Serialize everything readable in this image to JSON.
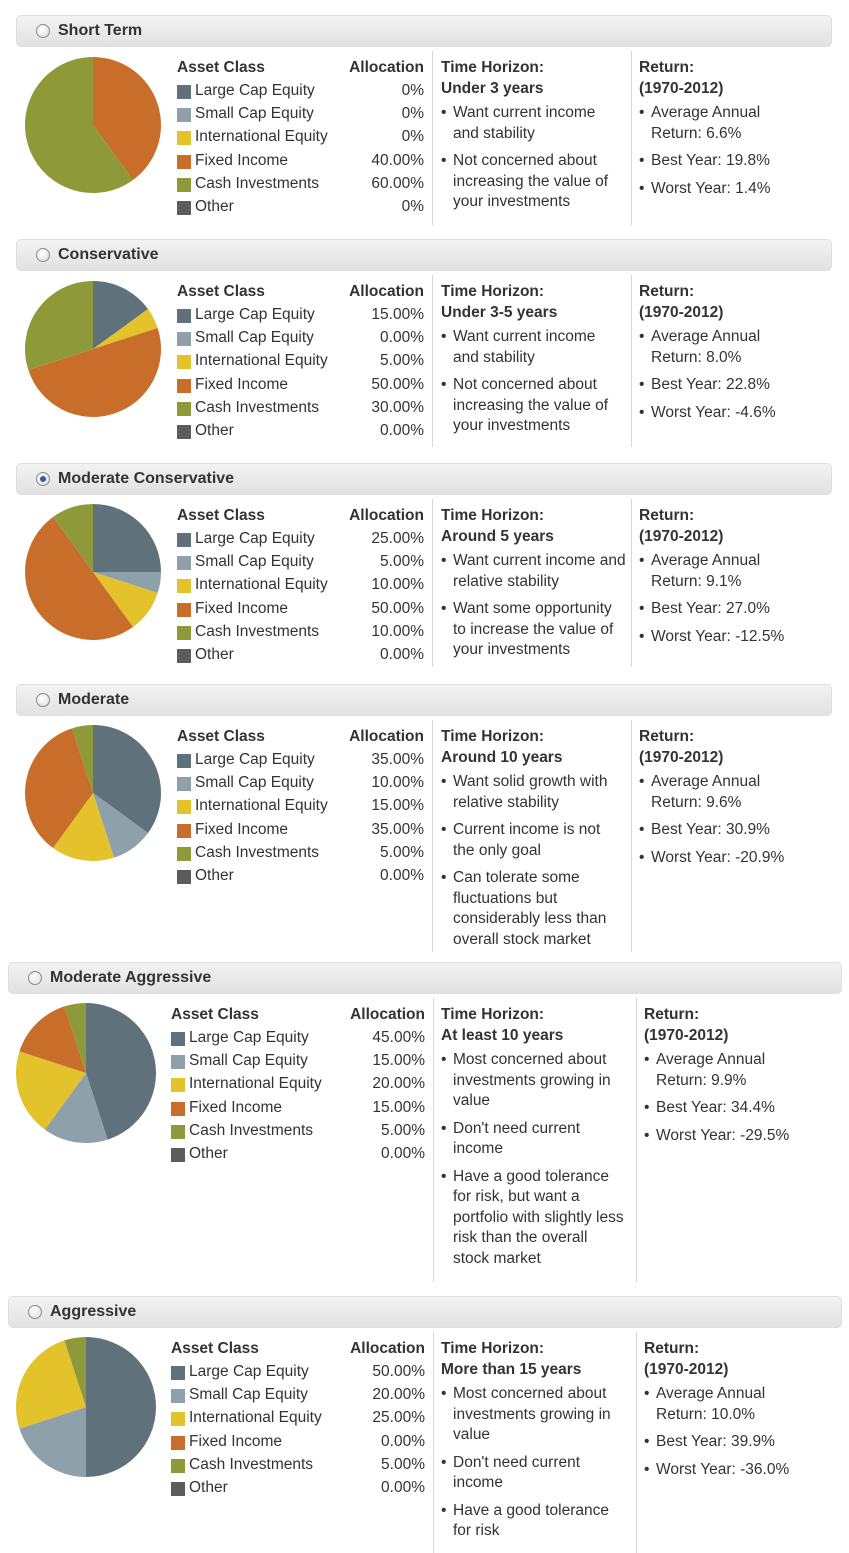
{
  "colors": {
    "large_cap": "#5f727b",
    "small_cap": "#8ea0a9",
    "international": "#e3c22c",
    "fixed_income": "#c96e2a",
    "cash": "#8e9a3a",
    "other": "#5c5c5c",
    "radio_selected": "#2f5fa8"
  },
  "labels": {
    "asset_class": "Asset Class",
    "allocation": "Allocation",
    "time_horizon": "Time Horizon:",
    "return_title": "Return:",
    "return_period": "(1970-2012)",
    "bullet": "•"
  },
  "portfolios": [
    {
      "title": "Short Term",
      "selected": false,
      "assets": [
        {
          "name": "Large Cap Equity",
          "allocation": "0%",
          "color_key": "large_cap",
          "pct": 0
        },
        {
          "name": "Small Cap Equity",
          "allocation": "0%",
          "color_key": "small_cap",
          "pct": 0
        },
        {
          "name": "International Equity",
          "allocation": "0%",
          "color_key": "international",
          "pct": 0
        },
        {
          "name": "Fixed Income",
          "allocation": "40.00%",
          "color_key": "fixed_income",
          "pct": 40
        },
        {
          "name": "Cash Investments",
          "allocation": "60.00%",
          "color_key": "cash",
          "pct": 60
        },
        {
          "name": "Other",
          "allocation": "0%",
          "color_key": "other",
          "pct": 0
        }
      ],
      "horizon": "Under 3 years",
      "horizon_bullets": [
        "Want current income and stability",
        "Not concerned about increasing the value of your investments"
      ],
      "return_bullets": [
        "Average Annual Return: 6.6%",
        "Best Year: 19.8%",
        "Worst Year: 1.4%"
      ]
    },
    {
      "title": "Conservative",
      "selected": false,
      "assets": [
        {
          "name": "Large Cap Equity",
          "allocation": "15.00%",
          "color_key": "large_cap",
          "pct": 15
        },
        {
          "name": "Small Cap Equity",
          "allocation": "0.00%",
          "color_key": "small_cap",
          "pct": 0
        },
        {
          "name": "International Equity",
          "allocation": "5.00%",
          "color_key": "international",
          "pct": 5
        },
        {
          "name": "Fixed Income",
          "allocation": "50.00%",
          "color_key": "fixed_income",
          "pct": 50
        },
        {
          "name": "Cash Investments",
          "allocation": "30.00%",
          "color_key": "cash",
          "pct": 30
        },
        {
          "name": "Other",
          "allocation": "0.00%",
          "color_key": "other",
          "pct": 0
        }
      ],
      "horizon": "Under 3-5 years",
      "horizon_bullets": [
        "Want current income and stability",
        "Not concerned about increasing the value of your investments"
      ],
      "return_bullets": [
        "Average Annual Return: 8.0%",
        "Best Year: 22.8%",
        "Worst Year: -4.6%"
      ]
    },
    {
      "title": "Moderate Conservative",
      "selected": true,
      "assets": [
        {
          "name": "Large Cap Equity",
          "allocation": "25.00%",
          "color_key": "large_cap",
          "pct": 25
        },
        {
          "name": "Small Cap Equity",
          "allocation": "5.00%",
          "color_key": "small_cap",
          "pct": 5
        },
        {
          "name": "International Equity",
          "allocation": "10.00%",
          "color_key": "international",
          "pct": 10
        },
        {
          "name": "Fixed Income",
          "allocation": "50.00%",
          "color_key": "fixed_income",
          "pct": 50
        },
        {
          "name": "Cash Investments",
          "allocation": "10.00%",
          "color_key": "cash",
          "pct": 10
        },
        {
          "name": "Other",
          "allocation": "0.00%",
          "color_key": "other",
          "pct": 0
        }
      ],
      "horizon": "Around 5 years",
      "horizon_bullets": [
        "Want current income and relative stability",
        "Want some opportunity to increase the value of your investments"
      ],
      "return_bullets": [
        "Average Annual Return: 9.1%",
        "Best Year: 27.0%",
        "Worst Year: -12.5%"
      ]
    },
    {
      "title": "Moderate",
      "selected": false,
      "assets": [
        {
          "name": "Large Cap Equity",
          "allocation": "35.00%",
          "color_key": "large_cap",
          "pct": 35
        },
        {
          "name": "Small Cap Equity",
          "allocation": "10.00%",
          "color_key": "small_cap",
          "pct": 10
        },
        {
          "name": "International Equity",
          "allocation": "15.00%",
          "color_key": "international",
          "pct": 15
        },
        {
          "name": "Fixed Income",
          "allocation": "35.00%",
          "color_key": "fixed_income",
          "pct": 35
        },
        {
          "name": "Cash Investments",
          "allocation": "5.00%",
          "color_key": "cash",
          "pct": 5
        },
        {
          "name": "Other",
          "allocation": "0.00%",
          "color_key": "other",
          "pct": 0
        }
      ],
      "horizon": "Around 10 years",
      "horizon_bullets": [
        "Want solid growth with relative stability",
        "Current income is not the only goal",
        "Can tolerate some fluctuations but considerably less than overall stock market"
      ],
      "return_bullets": [
        "Average Annual Return: 9.6%",
        "Best Year: 30.9%",
        "Worst Year: -20.9%"
      ]
    },
    {
      "title": "Moderate Aggressive",
      "selected": false,
      "assets": [
        {
          "name": "Large Cap Equity",
          "allocation": "45.00%",
          "color_key": "large_cap",
          "pct": 45
        },
        {
          "name": "Small Cap Equity",
          "allocation": "15.00%",
          "color_key": "small_cap",
          "pct": 15
        },
        {
          "name": "International Equity",
          "allocation": "20.00%",
          "color_key": "international",
          "pct": 20
        },
        {
          "name": "Fixed Income",
          "allocation": "15.00%",
          "color_key": "fixed_income",
          "pct": 15
        },
        {
          "name": "Cash Investments",
          "allocation": "5.00%",
          "color_key": "cash",
          "pct": 5
        },
        {
          "name": "Other",
          "allocation": "0.00%",
          "color_key": "other",
          "pct": 0
        }
      ],
      "horizon": "At least 10 years",
      "horizon_bullets": [
        "Most concerned about investments growing in value",
        "Don't need current income",
        "Have a good tolerance for risk, but want a portfolio with slightly less risk than the overall stock market"
      ],
      "return_bullets": [
        "Average Annual Return: 9.9%",
        "Best Year: 34.4%",
        "Worst Year: -29.5%"
      ]
    },
    {
      "title": "Aggressive",
      "selected": false,
      "assets": [
        {
          "name": "Large Cap Equity",
          "allocation": "50.00%",
          "color_key": "large_cap",
          "pct": 50
        },
        {
          "name": "Small Cap Equity",
          "allocation": "20.00%",
          "color_key": "small_cap",
          "pct": 20
        },
        {
          "name": "International Equity",
          "allocation": "25.00%",
          "color_key": "international",
          "pct": 25
        },
        {
          "name": "Fixed Income",
          "allocation": "0.00%",
          "color_key": "fixed_income",
          "pct": 0
        },
        {
          "name": "Cash Investments",
          "allocation": "5.00%",
          "color_key": "cash",
          "pct": 5
        },
        {
          "name": "Other",
          "allocation": "0.00%",
          "color_key": "other",
          "pct": 0
        }
      ],
      "horizon": "More than 15 years",
      "horizon_bullets": [
        "Most concerned about investments growing in value",
        "Don't need current income",
        "Have a good tolerance for risk"
      ],
      "return_bullets": [
        "Average Annual Return: 10.0%",
        "Best Year: 39.9%",
        "Worst Year: -36.0%"
      ]
    }
  ]
}
